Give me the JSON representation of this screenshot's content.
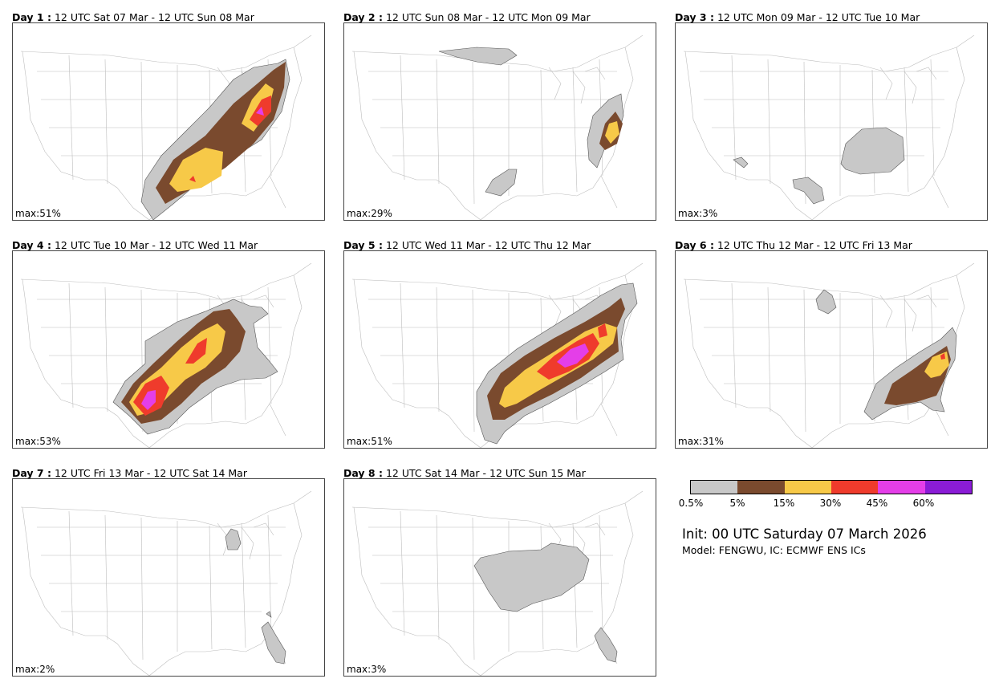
{
  "panels": [
    {
      "day_label": "Day 1 :",
      "period": "12 UTC Sat 07 Mar - 12 UTC Sun 08 Mar",
      "max_label": "max:51%"
    },
    {
      "day_label": "Day 2 :",
      "period": "12 UTC Sun 08 Mar - 12 UTC Mon 09 Mar",
      "max_label": "max:29%"
    },
    {
      "day_label": "Day 3 :",
      "period": "12 UTC Mon 09 Mar - 12 UTC Tue 10 Mar",
      "max_label": "max:3%"
    },
    {
      "day_label": "Day 4 :",
      "period": "12 UTC Tue 10 Mar - 12 UTC Wed 11 Mar",
      "max_label": "max:53%"
    },
    {
      "day_label": "Day 5 :",
      "period": "12 UTC Wed 11 Mar - 12 UTC Thu 12 Mar",
      "max_label": "max:51%"
    },
    {
      "day_label": "Day 6 :",
      "period": "12 UTC Thu 12 Mar - 12 UTC Fri 13 Mar",
      "max_label": "max:31%"
    },
    {
      "day_label": "Day 7 :",
      "period": "12 UTC Fri 13 Mar - 12 UTC Sat 14 Mar",
      "max_label": "max:2%"
    },
    {
      "day_label": "Day 8 :",
      "period": "12 UTC Sat 14 Mar - 12 UTC Sun 15 Mar",
      "max_label": "max:3%"
    }
  ],
  "legend": {
    "colors": [
      "#c8c8c8",
      "#7a4a2e",
      "#f7c948",
      "#ef3b2c",
      "#e43ee8",
      "#8a1cd6"
    ],
    "ticks": [
      "0.5%",
      "5%",
      "15%",
      "30%",
      "45%",
      "60%"
    ]
  },
  "init_text": "Init: 00 UTC Saturday 07 March 2026",
  "model_text": "Model: FENGWU, IC: ECMWF ENS ICs"
}
